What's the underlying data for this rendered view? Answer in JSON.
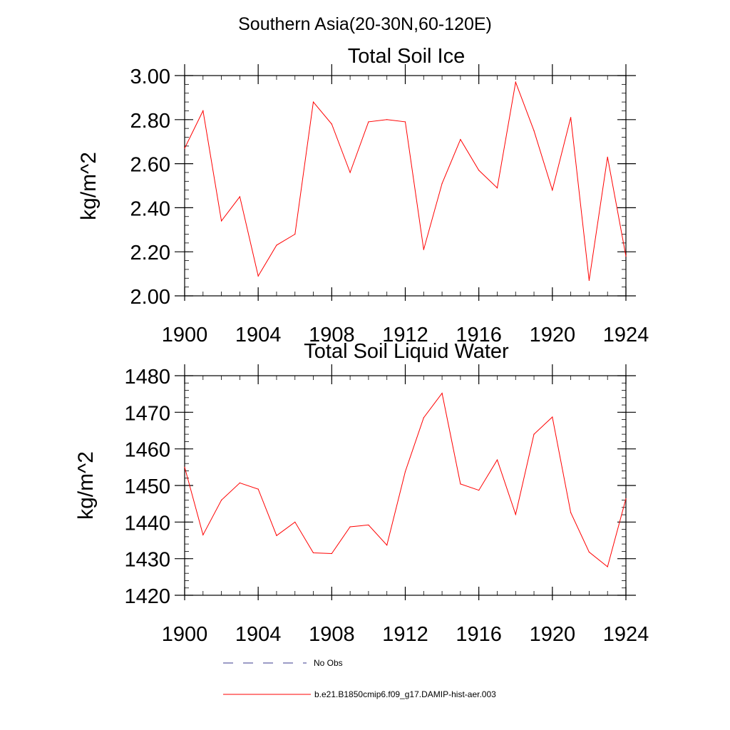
{
  "suptitle": "Southern Asia(20-30N,60-120E)",
  "colors": {
    "model": "#ff0000",
    "obs": "#3a3a8c"
  },
  "legend": {
    "obs_label": "No Obs",
    "model_label": "b.e21.B1850cmip6.f09_g17.DAMIP-hist-aer.003"
  },
  "chart_data": [
    {
      "type": "line",
      "title": "Total Soil Ice",
      "ylabel": "kg/m^2",
      "xlim": [
        1900,
        1924
      ],
      "ylim": [
        2.0,
        3.0
      ],
      "xticks": [
        1900,
        1904,
        1908,
        1912,
        1916,
        1920,
        1924
      ],
      "xtick_labels": [
        "1900",
        "1904",
        "1908",
        "1912",
        "1916",
        "1920",
        "1924"
      ],
      "yticks": [
        2.0,
        2.2,
        2.4,
        2.6,
        2.8,
        3.0
      ],
      "ytick_labels": [
        "2.00",
        "2.20",
        "2.40",
        "2.60",
        "2.80",
        "3.00"
      ],
      "x": [
        1900,
        1901,
        1902,
        1903,
        1904,
        1905,
        1906,
        1907,
        1908,
        1909,
        1910,
        1911,
        1912,
        1913,
        1914,
        1915,
        1916,
        1917,
        1918,
        1919,
        1920,
        1921,
        1922,
        1923,
        1924
      ],
      "series": [
        {
          "values": [
            2.67,
            2.84,
            2.34,
            2.45,
            2.09,
            2.23,
            2.28,
            2.88,
            2.78,
            2.56,
            2.79,
            2.8,
            2.79,
            2.21,
            2.51,
            2.71,
            2.57,
            2.49,
            2.97,
            2.75,
            2.48,
            2.81,
            2.07,
            2.63,
            2.18
          ]
        }
      ]
    },
    {
      "type": "line",
      "title": "Total Soil Liquid Water",
      "ylabel": "kg/m^2",
      "xlim": [
        1900,
        1924
      ],
      "ylim": [
        1420,
        1480
      ],
      "xticks": [
        1900,
        1904,
        1908,
        1912,
        1916,
        1920,
        1924
      ],
      "xtick_labels": [
        "1900",
        "1904",
        "1908",
        "1912",
        "1916",
        "1920",
        "1924"
      ],
      "yticks": [
        1420,
        1430,
        1440,
        1450,
        1460,
        1470,
        1480
      ],
      "ytick_labels": [
        "1420",
        "1430",
        "1440",
        "1450",
        "1460",
        "1470",
        "1480"
      ],
      "x": [
        1900,
        1901,
        1902,
        1903,
        1904,
        1905,
        1906,
        1907,
        1908,
        1909,
        1910,
        1911,
        1912,
        1913,
        1914,
        1915,
        1916,
        1917,
        1918,
        1919,
        1920,
        1921,
        1922,
        1923,
        1924
      ],
      "series": [
        {
          "values": [
            1455,
            1436.5,
            1446,
            1450.7,
            1449,
            1436.3,
            1440,
            1431.6,
            1431.4,
            1438.7,
            1439.2,
            1433.7,
            1453.8,
            1468.5,
            1475.2,
            1450.4,
            1448.7,
            1457,
            1442.1,
            1464,
            1468.7,
            1442.6,
            1431.8,
            1427.8,
            1446.4
          ]
        }
      ]
    }
  ]
}
